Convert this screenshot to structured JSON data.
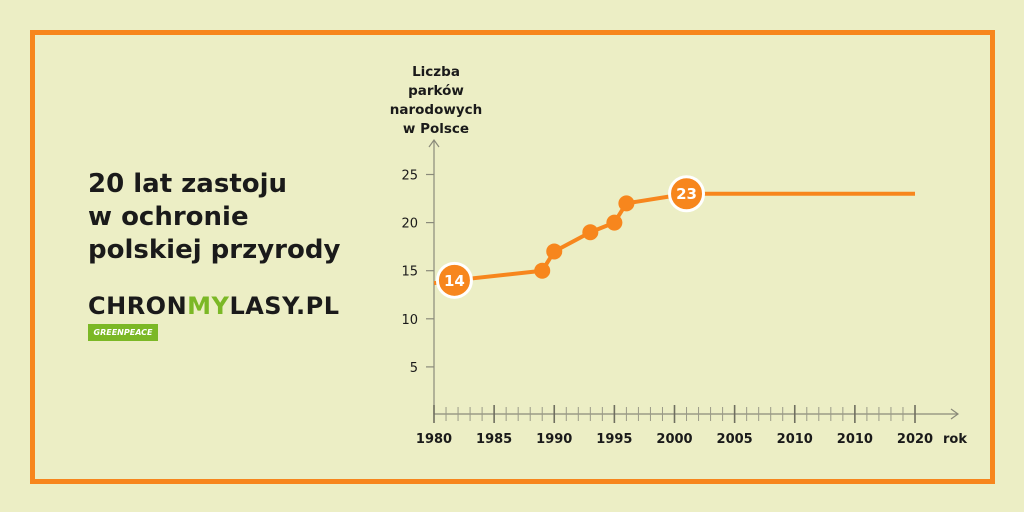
{
  "headline": [
    "20 lat zastoju",
    "w ochronie",
    "polskiej przyrody"
  ],
  "brand": {
    "part1": "CHRON",
    "part2": "MY",
    "part3": "LASY.PL",
    "badge": "GREENPEACE"
  },
  "colors": {
    "background": "#eceec5",
    "accent": "#f7861d",
    "brand_green": "#7bb826",
    "text": "#1a1a1a"
  },
  "chart_data": {
    "type": "line",
    "ylabel": [
      "Liczba",
      "parków",
      "narodowych",
      "w Polsce"
    ],
    "xlabel": "rok",
    "x_tick_labels": [
      "1980",
      "1985",
      "1990",
      "1995",
      "2000",
      "2005",
      "2010",
      "2010",
      "2020"
    ],
    "y_ticks": [
      5,
      10,
      15,
      20,
      25
    ],
    "xlim": [
      1980,
      2020
    ],
    "ylim": [
      0,
      27
    ],
    "series": [
      {
        "points": [
          {
            "x": 1980,
            "y": 13.7
          },
          {
            "x": 1981.7,
            "y": 14,
            "label": "14"
          },
          {
            "x": 1989,
            "y": 15
          },
          {
            "x": 1990,
            "y": 17
          },
          {
            "x": 1993,
            "y": 19
          },
          {
            "x": 1995,
            "y": 20
          },
          {
            "x": 1996,
            "y": 22
          },
          {
            "x": 2001,
            "y": 23,
            "label": "23"
          },
          {
            "x": 2020,
            "y": 23
          }
        ]
      }
    ]
  }
}
